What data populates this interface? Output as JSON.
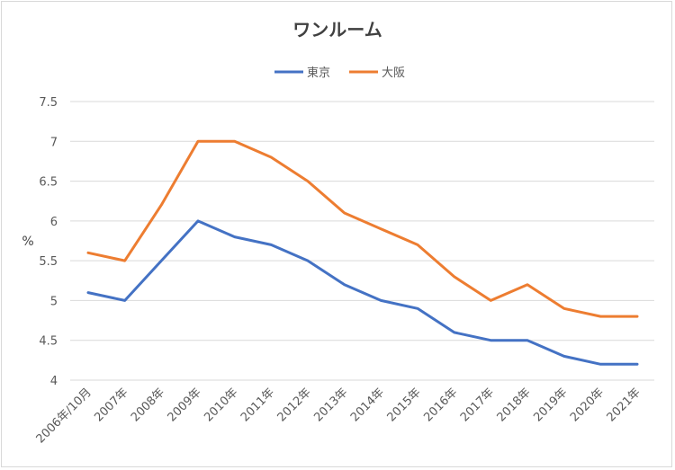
{
  "chart_data": {
    "type": "line",
    "title": "ワンルーム",
    "ylabel": "%",
    "xlabel": "",
    "categories": [
      "2006年/10月",
      "2007年",
      "2008年",
      "2009年",
      "2010年",
      "2011年",
      "2012年",
      "2013年",
      "2014年",
      "2015年",
      "2016年",
      "2017年",
      "2018年",
      "2019年",
      "2020年",
      "2021年"
    ],
    "series": [
      {
        "name": "東京",
        "color": "#4472c4",
        "values": [
          5.1,
          5.0,
          5.5,
          6.0,
          5.8,
          5.7,
          5.5,
          5.2,
          5.0,
          4.9,
          4.6,
          4.5,
          4.5,
          4.3,
          4.2,
          4.2
        ]
      },
      {
        "name": "大阪",
        "color": "#ed7d31",
        "values": [
          5.6,
          5.5,
          6.2,
          7.0,
          7.0,
          6.8,
          6.5,
          6.1,
          5.9,
          5.7,
          5.3,
          5.0,
          5.2,
          4.9,
          4.8,
          4.8
        ]
      }
    ],
    "yticks": [
      "4",
      "4.5",
      "5",
      "5.5",
      "6",
      "6.5",
      "7",
      "7.5"
    ],
    "ylim": [
      4,
      7.5
    ],
    "grid": true,
    "legend": "top-center"
  }
}
